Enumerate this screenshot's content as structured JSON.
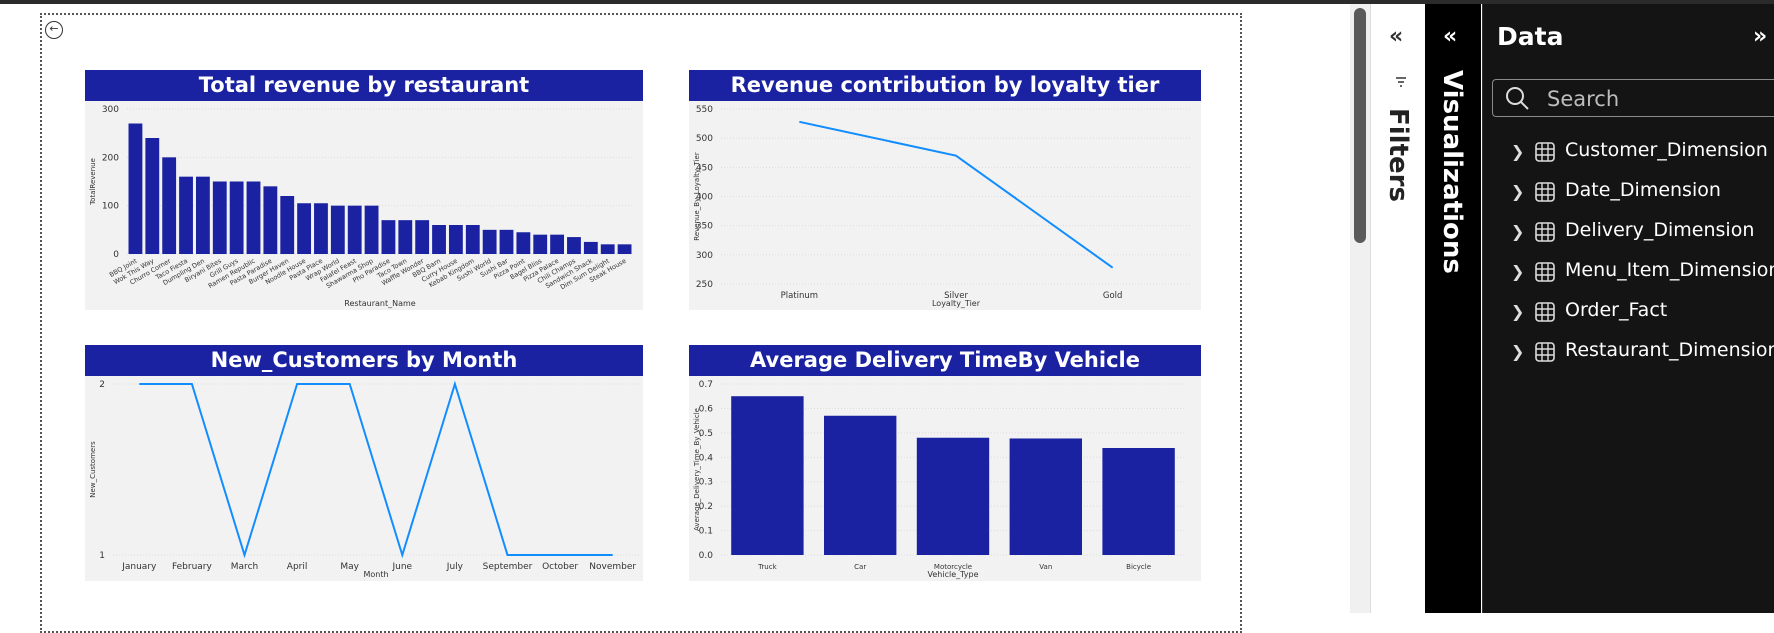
{
  "panels": {
    "filters_label": "Filters",
    "visualizations_label": "Visualizations",
    "data": {
      "title": "Data",
      "search_placeholder": "Search",
      "tables": [
        {
          "label": "Customer_Dimension"
        },
        {
          "label": "Date_Dimension"
        },
        {
          "label": "Delivery_Dimension"
        },
        {
          "label": "Menu_Item_Dimension"
        },
        {
          "label": "Order_Fact"
        },
        {
          "label": "Restaurant_Dimension"
        }
      ]
    }
  },
  "colors": {
    "bar": "#1a22a2",
    "line": "#118dff",
    "title_bg": "#1a22a2",
    "visual_bg": "#f2f2f2"
  },
  "chart_data": [
    {
      "type": "bar",
      "title": "Total revenue by restaurant",
      "xlabel": "Restaurant_Name",
      "ylabel": "TotalRevenue",
      "ylim": [
        0,
        300
      ],
      "yticks": [
        0,
        100,
        200,
        300
      ],
      "categories": [
        "BBQ Joint",
        "Wok This Way",
        "Churro Corner",
        "Taco Fiesta",
        "Dumpling Den",
        "Biryani Bites",
        "Grill Guys",
        "Ramen Republic",
        "Pasta Paradise",
        "Burger Haven",
        "Noodle House",
        "Pasta Place",
        "Wrap World",
        "Falafel Feast",
        "Shawarma Shop",
        "Pho Paradise",
        "Taco Town",
        "Waffle Wonder",
        "BBQ Barn",
        "Curry House",
        "Kebab Kingdom",
        "Sushi World",
        "Sushi Bar",
        "Pizza Point",
        "Bagel Bliss",
        "Pizza Palace",
        "Chili Champs",
        "Sandwich Shack",
        "Dim Sum Delight",
        "Steak House"
      ],
      "values": [
        270,
        240,
        200,
        160,
        160,
        150,
        150,
        150,
        140,
        120,
        105,
        105,
        100,
        100,
        100,
        70,
        70,
        70,
        60,
        60,
        60,
        50,
        50,
        45,
        40,
        40,
        35,
        25,
        20,
        20
      ]
    },
    {
      "type": "line",
      "title": "Revenue contribution by loyalty tier",
      "xlabel": "Loyalty_Tier",
      "ylabel": "Revenue_By_Loyalty_Tier",
      "ylim": [
        250,
        550
      ],
      "yticks": [
        250,
        300,
        350,
        400,
        450,
        500,
        550
      ],
      "categories": [
        "Platinum",
        "Silver",
        "Gold"
      ],
      "values": [
        528,
        470,
        278
      ]
    },
    {
      "type": "line",
      "title": "New_Customers by Month",
      "xlabel": "Month",
      "ylabel": "New_Customers",
      "ylim": [
        1,
        2
      ],
      "yticks": [
        1,
        2
      ],
      "categories": [
        "January",
        "February",
        "March",
        "April",
        "May",
        "June",
        "July",
        "September",
        "October",
        "November"
      ],
      "values": [
        2,
        2,
        1,
        2,
        2,
        1,
        2,
        1,
        1,
        1
      ]
    },
    {
      "type": "bar",
      "title": "Average Delivery TimeBy Vehicle",
      "xlabel": "Vehicle_Type",
      "ylabel": "Average_Delivery_Time_By_Vehicle",
      "ylim": [
        0,
        0.7
      ],
      "yticks": [
        0.0,
        0.1,
        0.2,
        0.3,
        0.4,
        0.5,
        0.6,
        0.7
      ],
      "ytick_labels": [
        "0.0",
        "0.1",
        "0.2",
        "0.3",
        "0.4",
        "0.5",
        "0.6",
        "0.7"
      ],
      "categories": [
        "Truck",
        "Car",
        "Motorcycle",
        "Van",
        "Bicycle"
      ],
      "values": [
        0.65,
        0.57,
        0.48,
        0.477,
        0.438
      ]
    }
  ]
}
